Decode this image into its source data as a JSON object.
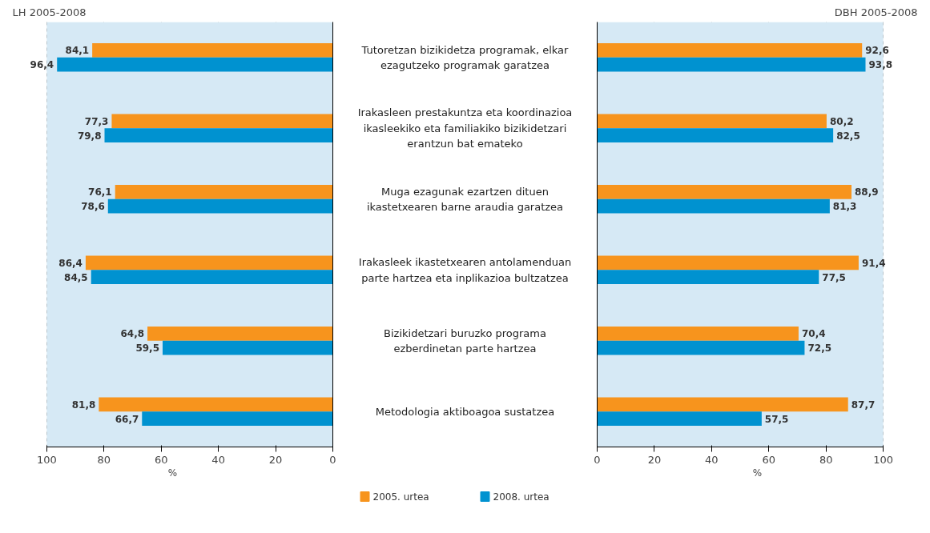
{
  "chart_data": [
    {
      "type": "bar",
      "orientation": "horizontal",
      "title": "LH 2005-2008",
      "xlabel": "%",
      "categories": [
        "Tutoretzan bizikidetza programak, elkar ezagutzeko programak garatzea",
        "Irakasleen prestakuntza eta koordinazioa ikasleekiko eta familiakiko bizikidetzari erantzun bat emateko",
        "Muga ezagunak ezartzen dituen ikastetxearen barne araudia garatzea",
        "Irakasleek ikastetxearen antolamenduan parte hartzea eta inplikazioa bultzatzea",
        "Bizikidetzari buruzko programa ezberdinetan parte hartzea",
        "Metodologia aktiboagoa sustatzea"
      ],
      "series": [
        {
          "name": "2005. urtea",
          "color": "#f7941d",
          "values": [
            84.1,
            77.3,
            76.1,
            86.4,
            64.8,
            81.8
          ],
          "value_labels": [
            "84,1",
            "77,3",
            "76,1",
            "86,4",
            "64,8",
            "81,8"
          ]
        },
        {
          "name": "2008. urtea",
          "color": "#0092d0",
          "values": [
            96.4,
            79.8,
            78.6,
            84.5,
            59.5,
            66.7
          ],
          "value_labels": [
            "96,4",
            "79,8",
            "78,6",
            "84,5",
            "59,5",
            "66,7"
          ]
        }
      ],
      "xlim": [
        100,
        0
      ],
      "xticks": [
        100,
        80,
        60,
        40,
        20,
        0
      ],
      "grid": "x",
      "legend": "bottom",
      "tick_labels": "x"
    },
    {
      "type": "bar",
      "orientation": "horizontal",
      "title": "DBH 2005-2008",
      "xlabel": "%",
      "categories": [
        null,
        null,
        null,
        null,
        null,
        null
      ],
      "series": [
        {
          "color": "#f7941d",
          "values": [
            92.6,
            80.2,
            88.9,
            91.4,
            70.4,
            87.7
          ],
          "value_labels": [
            "92,6",
            "80,2",
            "88,9",
            "91,4",
            "70,4",
            "87,7"
          ]
        },
        {
          "color": "#0092d0",
          "values": [
            93.8,
            82.5,
            81.3,
            77.5,
            72.5,
            57.5
          ],
          "value_labels": [
            "93,8",
            "82,5",
            "81,3",
            "77,5",
            "72,5",
            "57,5"
          ]
        }
      ],
      "xlim": [
        0,
        100
      ],
      "xticks": [
        0,
        20,
        40,
        60,
        80,
        100
      ],
      "grid": "x",
      "tick_labels": "x"
    }
  ]
}
